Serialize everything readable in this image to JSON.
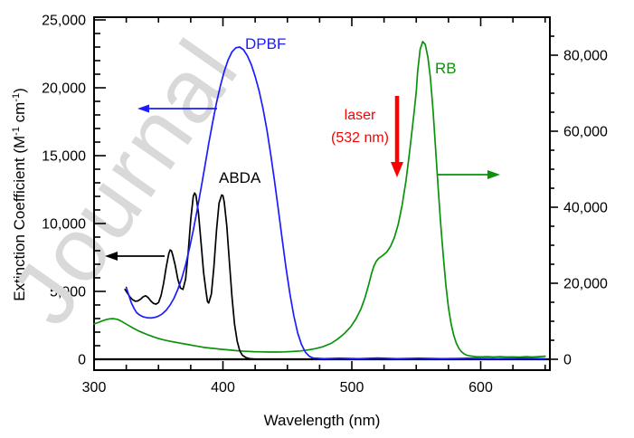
{
  "watermark": {
    "text": "Journal",
    "fragments": [
      "n",
      "a",
      "o"
    ],
    "color": "#d9d9d9"
  },
  "colors": {
    "dpbf": "#1c1cff",
    "abda": "#000000",
    "rb": "#0a930a",
    "laser": "#fb0000",
    "axis": "#000000"
  },
  "axes": {
    "x": {
      "title": "Wavelength (nm)",
      "tick_labels": [
        "300",
        "400",
        "500",
        "600"
      ],
      "tick_values": [
        300,
        400,
        500,
        600
      ],
      "minor_step": 25,
      "range": [
        300,
        653
      ]
    },
    "y_left": {
      "title_p1": "Extinction Coefficient (M",
      "title_sup1": "-1",
      "title_p2": " cm",
      "title_sup2": "-1",
      "title_p3": ")",
      "tick_labels": [
        "0",
        "5,000",
        "10,000",
        "15,000",
        "20,000",
        "25,000"
      ],
      "tick_values": [
        0,
        5000,
        10000,
        15000,
        20000,
        25000
      ],
      "minor_step": 1000,
      "range": [
        -800,
        25200
      ]
    },
    "y_right": {
      "tick_labels": [
        "0",
        "20,000",
        "40,000",
        "60,000",
        "80,000"
      ],
      "tick_values": [
        0,
        20000,
        40000,
        60000,
        80000
      ],
      "minor_step": 5000,
      "minor_max": 85000,
      "range": [
        -2850,
        90000
      ]
    }
  },
  "annotations": {
    "dpbf_label": "DPBF",
    "abda_label": "ABDA",
    "rb_label": "RB",
    "laser_line1": "laser",
    "laser_line2": "(532 nm)",
    "arrows": [
      {
        "name": "dpbf-axis-arrow",
        "color": "#1c1cff",
        "from": [
          240,
          120
        ],
        "to": [
          152,
          120
        ],
        "width": 1.7,
        "head_len": 13,
        "head_w": 9
      },
      {
        "name": "abda-axis-arrow",
        "color": "#000000",
        "from": [
          182,
          283
        ],
        "to": [
          116,
          283
        ],
        "width": 1.7,
        "head_len": 14,
        "head_w": 10
      },
      {
        "name": "rb-axis-arrow",
        "color": "#0a930a",
        "from": [
          483,
          193
        ],
        "to": [
          553,
          193
        ],
        "width": 1.7,
        "head_len": 14,
        "head_w": 10
      },
      {
        "name": "laser-arrow",
        "color": "#fb0000",
        "from": [
          439,
          106
        ],
        "to": [
          439,
          196
        ],
        "width": 4.5,
        "head_len": 17,
        "head_w": 14
      }
    ]
  },
  "chart_data": {
    "type": "line",
    "title": "",
    "xlabel": "Wavelength (nm)",
    "ylabel_left": "Extinction Coefficient (M-1 cm-1)",
    "x_range": [
      300,
      650
    ],
    "y_left_range": [
      0,
      25000
    ],
    "y_right_range": [
      0,
      80000
    ],
    "grid": false,
    "legend": "inline-labels",
    "laser_annotation_nm": 532,
    "series": [
      {
        "name": "DPBF",
        "axis": "left",
        "color": "#1c1cff",
        "points": [
          [
            325,
            5300
          ],
          [
            327,
            4700
          ],
          [
            329,
            4150
          ],
          [
            331,
            3750
          ],
          [
            333,
            3450
          ],
          [
            335,
            3280
          ],
          [
            338,
            3130
          ],
          [
            341,
            3060
          ],
          [
            344,
            3040
          ],
          [
            347,
            3080
          ],
          [
            350,
            3180
          ],
          [
            353,
            3350
          ],
          [
            356,
            3620
          ],
          [
            359,
            4000
          ],
          [
            362,
            4500
          ],
          [
            365,
            5150
          ],
          [
            368,
            5950
          ],
          [
            371,
            6950
          ],
          [
            374,
            8150
          ],
          [
            377,
            9500
          ],
          [
            380,
            11000
          ],
          [
            383,
            12600
          ],
          [
            386,
            14250
          ],
          [
            389,
            15900
          ],
          [
            392,
            17450
          ],
          [
            395,
            18900
          ],
          [
            398,
            20150
          ],
          [
            401,
            21200
          ],
          [
            404,
            22050
          ],
          [
            407,
            22650
          ],
          [
            410,
            22950
          ],
          [
            413,
            23000
          ],
          [
            416,
            22800
          ],
          [
            419,
            22350
          ],
          [
            422,
            21700
          ],
          [
            425,
            20850
          ],
          [
            428,
            19800
          ],
          [
            431,
            18500
          ],
          [
            434,
            16950
          ],
          [
            437,
            15150
          ],
          [
            440,
            13150
          ],
          [
            443,
            11000
          ],
          [
            446,
            8800
          ],
          [
            449,
            6700
          ],
          [
            452,
            4800
          ],
          [
            455,
            3200
          ],
          [
            458,
            1950
          ],
          [
            461,
            1080
          ],
          [
            464,
            520
          ],
          [
            467,
            220
          ],
          [
            470,
            90
          ],
          [
            478,
            50
          ],
          [
            490,
            80
          ],
          [
            505,
            40
          ],
          [
            520,
            90
          ],
          [
            535,
            50
          ],
          [
            552,
            80
          ],
          [
            570,
            40
          ],
          [
            590,
            70
          ],
          [
            612,
            40
          ],
          [
            632,
            70
          ],
          [
            650,
            50
          ]
        ]
      },
      {
        "name": "ABDA",
        "axis": "left",
        "color": "#000000",
        "points": [
          [
            324,
            5150
          ],
          [
            326,
            4850
          ],
          [
            328,
            4580
          ],
          [
            330,
            4380
          ],
          [
            332,
            4270
          ],
          [
            334,
            4300
          ],
          [
            336,
            4420
          ],
          [
            338,
            4600
          ],
          [
            340,
            4680
          ],
          [
            342,
            4550
          ],
          [
            344,
            4300
          ],
          [
            346,
            4120
          ],
          [
            348,
            4060
          ],
          [
            350,
            4180
          ],
          [
            352,
            4700
          ],
          [
            354,
            5600
          ],
          [
            356,
            6800
          ],
          [
            358,
            7800
          ],
          [
            359,
            8050
          ],
          [
            360,
            8000
          ],
          [
            361,
            7700
          ],
          [
            363,
            6900
          ],
          [
            365,
            5900
          ],
          [
            367,
            5250
          ],
          [
            369,
            5150
          ],
          [
            371,
            5900
          ],
          [
            373,
            7800
          ],
          [
            375,
            10300
          ],
          [
            377,
            12000
          ],
          [
            378,
            12250
          ],
          [
            379,
            12100
          ],
          [
            381,
            10800
          ],
          [
            383,
            8600
          ],
          [
            385,
            6400
          ],
          [
            387,
            4900
          ],
          [
            388,
            4250
          ],
          [
            389,
            4150
          ],
          [
            391,
            4800
          ],
          [
            393,
            6800
          ],
          [
            395,
            9500
          ],
          [
            397,
            11500
          ],
          [
            399,
            12100
          ],
          [
            400,
            12050
          ],
          [
            401,
            11600
          ],
          [
            403,
            9800
          ],
          [
            405,
            7200
          ],
          [
            407,
            4600
          ],
          [
            409,
            2600
          ],
          [
            411,
            1350
          ],
          [
            413,
            650
          ],
          [
            415,
            300
          ],
          [
            418,
            120
          ],
          [
            421,
            40
          ],
          [
            425,
            10
          ],
          [
            450,
            5
          ],
          [
            500,
            5
          ],
          [
            575,
            5
          ],
          [
            650,
            5
          ]
        ]
      },
      {
        "name": "RB",
        "axis": "right",
        "color": "#0a930a",
        "points": [
          [
            300,
            9300
          ],
          [
            303,
            9650
          ],
          [
            306,
            10050
          ],
          [
            309,
            10400
          ],
          [
            312,
            10650
          ],
          [
            315,
            10700
          ],
          [
            318,
            10500
          ],
          [
            321,
            10050
          ],
          [
            324,
            9450
          ],
          [
            327,
            8850
          ],
          [
            330,
            8250
          ],
          [
            334,
            7550
          ],
          [
            338,
            6950
          ],
          [
            342,
            6400
          ],
          [
            346,
            5900
          ],
          [
            350,
            5450
          ],
          [
            354,
            5100
          ],
          [
            358,
            4800
          ],
          [
            362,
            4550
          ],
          [
            366,
            4300
          ],
          [
            370,
            4050
          ],
          [
            374,
            3800
          ],
          [
            378,
            3550
          ],
          [
            382,
            3300
          ],
          [
            386,
            3100
          ],
          [
            390,
            2950
          ],
          [
            394,
            2800
          ],
          [
            398,
            2650
          ],
          [
            403,
            2500
          ],
          [
            408,
            2350
          ],
          [
            413,
            2200
          ],
          [
            418,
            2100
          ],
          [
            424,
            2000
          ],
          [
            430,
            1950
          ],
          [
            436,
            1900
          ],
          [
            442,
            1900
          ],
          [
            448,
            1950
          ],
          [
            454,
            2050
          ],
          [
            460,
            2200
          ],
          [
            466,
            2450
          ],
          [
            472,
            2800
          ],
          [
            478,
            3350
          ],
          [
            484,
            4200
          ],
          [
            489,
            5300
          ],
          [
            494,
            6700
          ],
          [
            499,
            8500
          ],
          [
            503,
            10500
          ],
          [
            507,
            13200
          ],
          [
            510,
            16000
          ],
          [
            513,
            19500
          ],
          [
            515,
            22200
          ],
          [
            517,
            24400
          ],
          [
            519,
            25800
          ],
          [
            521,
            26600
          ],
          [
            524,
            27300
          ],
          [
            527,
            28200
          ],
          [
            530,
            29700
          ],
          [
            533,
            32000
          ],
          [
            536,
            35500
          ],
          [
            539,
            40500
          ],
          [
            542,
            47000
          ],
          [
            545,
            55000
          ],
          [
            548,
            64000
          ],
          [
            550,
            70500
          ],
          [
            551,
            75500
          ],
          [
            553,
            81500
          ],
          [
            555,
            83600
          ],
          [
            557,
            82800
          ],
          [
            559,
            79500
          ],
          [
            561,
            74000
          ],
          [
            563,
            65500
          ],
          [
            565,
            55500
          ],
          [
            567,
            45000
          ],
          [
            569,
            35500
          ],
          [
            571,
            27000
          ],
          [
            573,
            19500
          ],
          [
            575,
            13500
          ],
          [
            577,
            9400
          ],
          [
            579,
            6400
          ],
          [
            581,
            4300
          ],
          [
            583,
            2900
          ],
          [
            585,
            2000
          ],
          [
            587,
            1450
          ],
          [
            589,
            1100
          ],
          [
            592,
            850
          ],
          [
            596,
            700
          ],
          [
            600,
            650
          ],
          [
            605,
            700
          ],
          [
            610,
            600
          ],
          [
            615,
            700
          ],
          [
            620,
            600
          ],
          [
            625,
            650
          ],
          [
            630,
            580
          ],
          [
            635,
            680
          ],
          [
            640,
            600
          ],
          [
            645,
            700
          ],
          [
            650,
            800
          ]
        ]
      }
    ]
  }
}
